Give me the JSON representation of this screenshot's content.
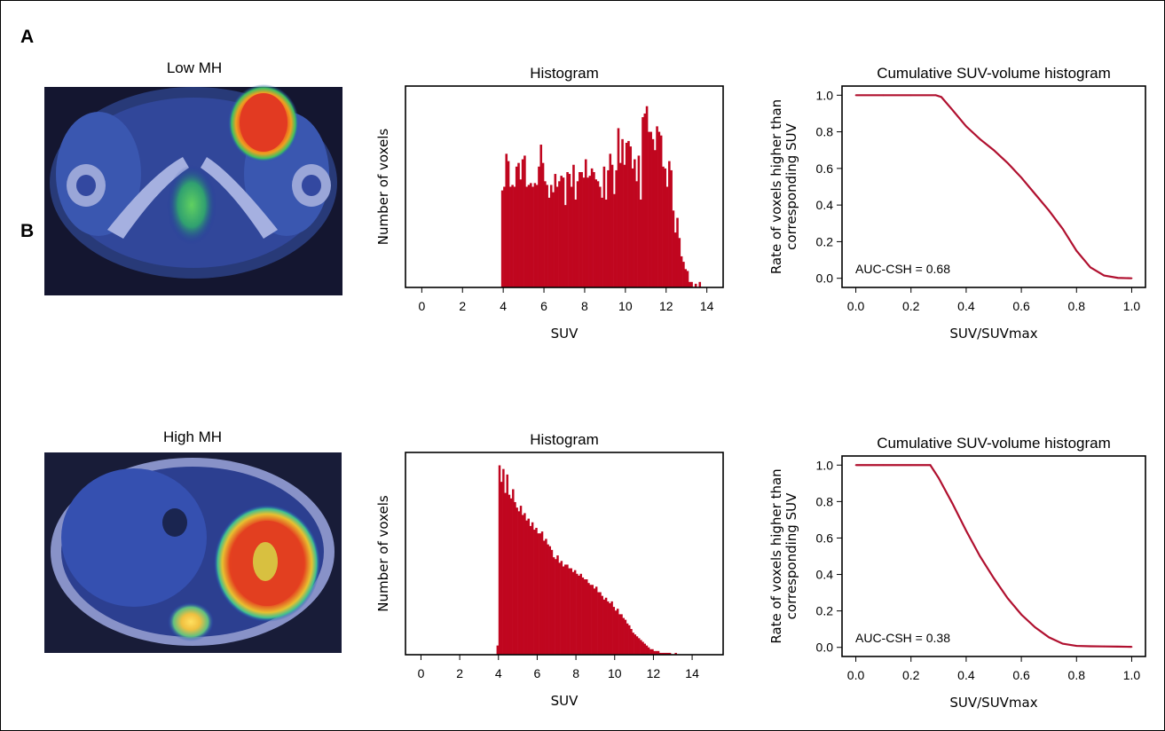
{
  "colors": {
    "bar": "#c0061f",
    "line": "#b0102f",
    "axis": "#000000"
  },
  "panels": [
    {
      "label": "A",
      "image_title": "Low MH",
      "image_kind": "pet-ct-pelvis",
      "histogram_title": "Histogram",
      "curve_title": "Cumulative SUV-volume histogram",
      "annotation": "AUC-CSH = 0.68"
    },
    {
      "label": "B",
      "image_title": "High MH",
      "image_kind": "pet-ct-abdomen",
      "histogram_title": "Histogram",
      "curve_title": "Cumulative SUV-volume histogram",
      "annotation": "AUC-CSH = 0.38"
    }
  ],
  "chart_data": [
    {
      "type": "bar",
      "title": "Histogram",
      "xlabel": "SUV",
      "ylabel": "Number of voxels",
      "xlim": [
        -0.8,
        14.8
      ],
      "ylim": [
        0,
        110
      ],
      "xticks": [
        "0",
        "2",
        "4",
        "6",
        "8",
        "10",
        "12",
        "14"
      ],
      "bin_width": 0.1,
      "x_start": 3.9,
      "values": [
        53,
        55,
        73,
        69,
        55,
        56,
        55,
        66,
        68,
        59,
        70,
        72,
        55,
        56,
        57,
        55,
        57,
        56,
        66,
        78,
        68,
        58,
        56,
        49,
        56,
        52,
        62,
        55,
        58,
        61,
        60,
        45,
        63,
        62,
        55,
        67,
        48,
        58,
        63,
        63,
        60,
        70,
        60,
        61,
        65,
        63,
        59,
        58,
        55,
        49,
        66,
        48,
        64,
        73,
        67,
        51,
        64,
        87,
        68,
        81,
        67,
        79,
        80,
        77,
        65,
        70,
        58,
        72,
        48,
        93,
        95,
        99,
        85,
        85,
        81,
        75,
        88,
        85,
        83,
        66,
        65,
        55,
        69,
        64,
        42,
        30,
        38,
        27,
        17,
        14,
        10,
        9,
        3,
        3,
        0,
        2,
        0,
        3
      ]
    },
    {
      "type": "line",
      "title": "Cumulative SUV-volume histogram",
      "xlabel": "SUV/SUVmax",
      "ylabel": "Rate of voxels higher than corresponding SUV",
      "xlim": [
        -0.05,
        1.05
      ],
      "ylim": [
        -0.05,
        1.05
      ],
      "xticks": [
        "0.0",
        "0.2",
        "0.4",
        "0.6",
        "0.8",
        "1.0"
      ],
      "yticks": [
        "0.0",
        "0.2",
        "0.4",
        "0.6",
        "0.8",
        "1.0"
      ],
      "series": [
        {
          "x": [
            0.0,
            0.1,
            0.2,
            0.29,
            0.31,
            0.35,
            0.4,
            0.45,
            0.5,
            0.55,
            0.6,
            0.65,
            0.7,
            0.75,
            0.8,
            0.85,
            0.9,
            0.95,
            1.0
          ],
          "y": [
            1.0,
            1.0,
            1.0,
            1.0,
            0.99,
            0.92,
            0.83,
            0.76,
            0.7,
            0.63,
            0.55,
            0.46,
            0.37,
            0.27,
            0.15,
            0.06,
            0.015,
            0.002,
            0.0
          ]
        }
      ]
    },
    {
      "type": "bar",
      "title": "Histogram",
      "xlabel": "SUV",
      "ylabel": "Number of voxels",
      "xlim": [
        -0.8,
        15.6
      ],
      "ylim": [
        0,
        110
      ],
      "xticks": [
        "0",
        "2",
        "4",
        "6",
        "8",
        "10",
        "12",
        "14"
      ],
      "bin_width": 0.1,
      "x_start": 3.9,
      "values": [
        5,
        103,
        94,
        101,
        88,
        98,
        87,
        85,
        90,
        83,
        80,
        78,
        81,
        76,
        77,
        73,
        74,
        70,
        72,
        68,
        69,
        66,
        66,
        67,
        62,
        63,
        60,
        59,
        57,
        53,
        52,
        54,
        50,
        51,
        48,
        49,
        49,
        47,
        47,
        45,
        46,
        44,
        43,
        44,
        42,
        41,
        41,
        39,
        38,
        38,
        36,
        37,
        34,
        34,
        32,
        30,
        31,
        29,
        28,
        29,
        26,
        24,
        25,
        22,
        22,
        20,
        19,
        17,
        16,
        14,
        12,
        11,
        10,
        9,
        8,
        7,
        6,
        5,
        4,
        3,
        3,
        2,
        2,
        2,
        1,
        1,
        1,
        1,
        1,
        1,
        0,
        0,
        1
      ]
    },
    {
      "type": "line",
      "title": "Cumulative SUV-volume histogram",
      "xlabel": "SUV/SUVmax",
      "ylabel": "Rate of voxels higher than corresponding SUV",
      "xlim": [
        -0.05,
        1.05
      ],
      "ylim": [
        -0.05,
        1.05
      ],
      "xticks": [
        "0.0",
        "0.2",
        "0.4",
        "0.6",
        "0.8",
        "1.0"
      ],
      "yticks": [
        "0.0",
        "0.2",
        "0.4",
        "0.6",
        "0.8",
        "1.0"
      ],
      "series": [
        {
          "x": [
            0.0,
            0.1,
            0.2,
            0.27,
            0.3,
            0.35,
            0.4,
            0.45,
            0.5,
            0.55,
            0.6,
            0.65,
            0.7,
            0.75,
            0.8,
            0.85,
            0.9,
            0.95,
            1.0
          ],
          "y": [
            1.0,
            1.0,
            1.0,
            1.0,
            0.93,
            0.79,
            0.64,
            0.5,
            0.38,
            0.27,
            0.18,
            0.11,
            0.055,
            0.02,
            0.008,
            0.006,
            0.005,
            0.004,
            0.003
          ]
        }
      ]
    }
  ]
}
